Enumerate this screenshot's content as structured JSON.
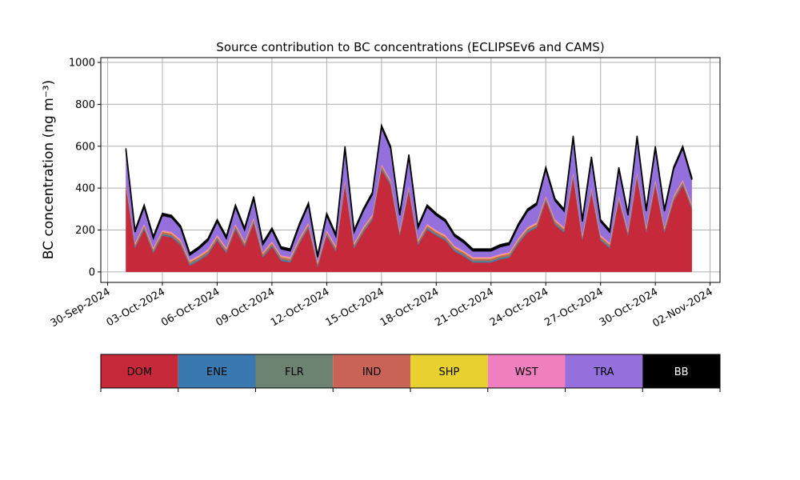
{
  "chart_data": {
    "type": "stacked-area",
    "title": "Source contribution to BC concentrations (ECLIPSEv6 and CAMS)",
    "y_label": "BC concentration (ng m⁻³)",
    "x": [
      "2024-10-01T00:00",
      "2024-10-01T12:00",
      "2024-10-02T00:00",
      "2024-10-02T12:00",
      "2024-10-03T00:00",
      "2024-10-03T12:00",
      "2024-10-04T00:00",
      "2024-10-04T12:00",
      "2024-10-05T00:00",
      "2024-10-05T12:00",
      "2024-10-06T00:00",
      "2024-10-06T12:00",
      "2024-10-07T00:00",
      "2024-10-07T12:00",
      "2024-10-08T00:00",
      "2024-10-08T12:00",
      "2024-10-09T00:00",
      "2024-10-09T12:00",
      "2024-10-10T00:00",
      "2024-10-10T12:00",
      "2024-10-11T00:00",
      "2024-10-11T12:00",
      "2024-10-12T00:00",
      "2024-10-12T12:00",
      "2024-10-13T00:00",
      "2024-10-13T12:00",
      "2024-10-14T00:00",
      "2024-10-14T12:00",
      "2024-10-15T00:00",
      "2024-10-15T12:00",
      "2024-10-16T00:00",
      "2024-10-16T12:00",
      "2024-10-17T00:00",
      "2024-10-17T12:00",
      "2024-10-18T00:00",
      "2024-10-18T12:00",
      "2024-10-19T00:00",
      "2024-10-19T12:00",
      "2024-10-20T00:00",
      "2024-10-20T12:00",
      "2024-10-21T00:00",
      "2024-10-21T12:00",
      "2024-10-22T00:00",
      "2024-10-22T12:00",
      "2024-10-23T00:00",
      "2024-10-23T12:00",
      "2024-10-24T00:00",
      "2024-10-24T12:00",
      "2024-10-25T00:00",
      "2024-10-25T12:00",
      "2024-10-26T00:00",
      "2024-10-26T12:00",
      "2024-10-27T00:00",
      "2024-10-27T12:00",
      "2024-10-28T00:00",
      "2024-10-28T12:00",
      "2024-10-29T00:00",
      "2024-10-29T12:00",
      "2024-10-30T00:00",
      "2024-10-30T12:00",
      "2024-10-31T00:00",
      "2024-10-31T12:00",
      "2024-11-01T00:00"
    ],
    "series": [
      {
        "name": "DOM",
        "color": "#c62a3a",
        "values": [
          405,
          113,
          203,
          90,
          173,
          165,
          128,
          30,
          53,
          83,
          150,
          90,
          203,
          120,
          233,
          68,
          120,
          53,
          45,
          135,
          210,
          23,
          173,
          98,
          413,
          113,
          188,
          248,
          488,
          413,
          173,
          383,
          128,
          203,
          173,
          150,
          98,
          75,
          45,
          45,
          45,
          60,
          68,
          135,
          188,
          210,
          338,
          225,
          188,
          450,
          150,
          375,
          150,
          113,
          338,
          173,
          450,
          188,
          413,
          188,
          338,
          413,
          300
        ]
      },
      {
        "name": "ENE",
        "color": "#3a78b0",
        "values": [
          5,
          5,
          5,
          5,
          5,
          5,
          5,
          5,
          5,
          5,
          5,
          5,
          5,
          5,
          5,
          5,
          5,
          5,
          5,
          5,
          5,
          5,
          5,
          5,
          5,
          5,
          5,
          5,
          5,
          5,
          5,
          5,
          5,
          5,
          5,
          5,
          5,
          5,
          5,
          5,
          5,
          5,
          5,
          5,
          5,
          5,
          5,
          5,
          5,
          5,
          5,
          5,
          5,
          5,
          5,
          5,
          5,
          5,
          5,
          5,
          5,
          5,
          5
        ]
      },
      {
        "name": "FLR",
        "color": "#6e8272",
        "values": [
          5,
          5,
          5,
          5,
          5,
          5,
          5,
          5,
          5,
          5,
          5,
          5,
          5,
          5,
          5,
          5,
          5,
          5,
          5,
          5,
          5,
          5,
          5,
          5,
          5,
          5,
          5,
          5,
          5,
          5,
          5,
          5,
          5,
          5,
          5,
          5,
          5,
          5,
          5,
          5,
          5,
          5,
          5,
          5,
          5,
          5,
          5,
          5,
          5,
          5,
          5,
          5,
          5,
          5,
          5,
          5,
          5,
          5,
          5,
          5,
          5,
          5,
          5
        ]
      },
      {
        "name": "IND",
        "color": "#c86356",
        "values": [
          8,
          8,
          8,
          8,
          8,
          8,
          8,
          8,
          8,
          8,
          8,
          8,
          8,
          8,
          8,
          8,
          8,
          8,
          8,
          8,
          8,
          8,
          8,
          8,
          8,
          8,
          8,
          8,
          8,
          8,
          8,
          8,
          8,
          8,
          8,
          8,
          8,
          8,
          8,
          8,
          8,
          8,
          8,
          8,
          8,
          8,
          8,
          8,
          8,
          8,
          8,
          8,
          8,
          8,
          8,
          8,
          8,
          8,
          8,
          8,
          8,
          8,
          8
        ]
      },
      {
        "name": "SHP",
        "color": "#e8d030",
        "values": [
          3,
          3,
          3,
          3,
          3,
          3,
          3,
          3,
          3,
          3,
          3,
          3,
          3,
          3,
          3,
          3,
          3,
          3,
          3,
          3,
          3,
          3,
          3,
          3,
          3,
          3,
          3,
          3,
          3,
          3,
          3,
          3,
          3,
          3,
          3,
          3,
          3,
          3,
          3,
          3,
          3,
          3,
          3,
          3,
          3,
          3,
          3,
          3,
          3,
          3,
          3,
          3,
          3,
          3,
          3,
          3,
          3,
          3,
          3,
          3,
          3,
          3,
          3
        ]
      },
      {
        "name": "WST",
        "color": "#f07fbf",
        "values": [
          6,
          6,
          6,
          6,
          6,
          6,
          6,
          6,
          6,
          6,
          6,
          6,
          6,
          6,
          6,
          6,
          6,
          6,
          6,
          6,
          6,
          6,
          6,
          6,
          6,
          6,
          6,
          6,
          6,
          6,
          6,
          6,
          6,
          6,
          6,
          6,
          6,
          6,
          6,
          6,
          6,
          6,
          6,
          6,
          6,
          6,
          6,
          6,
          6,
          6,
          6,
          6,
          6,
          6,
          6,
          6,
          6,
          6,
          6,
          6,
          6,
          6,
          6
        ]
      },
      {
        "name": "TRA",
        "color": "#9370db",
        "values": [
          148,
          50,
          80,
          43,
          70,
          68,
          55,
          23,
          30,
          40,
          63,
          43,
          80,
          53,
          90,
          35,
          53,
          30,
          28,
          58,
          83,
          20,
          70,
          45,
          150,
          50,
          75,
          95,
          175,
          150,
          70,
          140,
          55,
          80,
          70,
          63,
          45,
          38,
          28,
          28,
          28,
          33,
          35,
          58,
          75,
          83,
          125,
          88,
          75,
          163,
          63,
          138,
          63,
          50,
          125,
          70,
          163,
          75,
          150,
          75,
          125,
          150,
          113
        ]
      },
      {
        "name": "BB",
        "color": "#000000",
        "values": [
          10,
          10,
          10,
          10,
          10,
          10,
          10,
          10,
          10,
          10,
          10,
          10,
          10,
          10,
          10,
          10,
          10,
          10,
          10,
          10,
          10,
          10,
          10,
          10,
          10,
          10,
          10,
          10,
          10,
          10,
          10,
          10,
          10,
          10,
          10,
          10,
          10,
          10,
          10,
          10,
          10,
          10,
          10,
          10,
          10,
          10,
          10,
          10,
          10,
          10,
          10,
          10,
          10,
          10,
          10,
          10,
          10,
          10,
          10,
          10,
          10,
          10,
          10
        ]
      }
    ],
    "xlim": [
      "2024-09-29T15:00",
      "2024-11-02T13:00"
    ],
    "xticks": [
      {
        "value": "2024-09-30T00:00",
        "label": "30-Sep-2024"
      },
      {
        "value": "2024-10-03T00:00",
        "label": "03-Oct-2024"
      },
      {
        "value": "2024-10-06T00:00",
        "label": "06-Oct-2024"
      },
      {
        "value": "2024-10-09T00:00",
        "label": "09-Oct-2024"
      },
      {
        "value": "2024-10-12T00:00",
        "label": "12-Oct-2024"
      },
      {
        "value": "2024-10-15T00:00",
        "label": "15-Oct-2024"
      },
      {
        "value": "2024-10-18T00:00",
        "label": "18-Oct-2024"
      },
      {
        "value": "2024-10-21T00:00",
        "label": "21-Oct-2024"
      },
      {
        "value": "2024-10-24T00:00",
        "label": "24-Oct-2024"
      },
      {
        "value": "2024-10-27T00:00",
        "label": "27-Oct-2024"
      },
      {
        "value": "2024-10-30T00:00",
        "label": "30-Oct-2024"
      },
      {
        "value": "2024-11-02T00:00",
        "label": "02-Nov-2024"
      }
    ],
    "ylim": [
      -50,
      1023
    ],
    "yticks": [
      0,
      200,
      400,
      600,
      800,
      1000
    ],
    "grid": true,
    "legend": "below"
  }
}
